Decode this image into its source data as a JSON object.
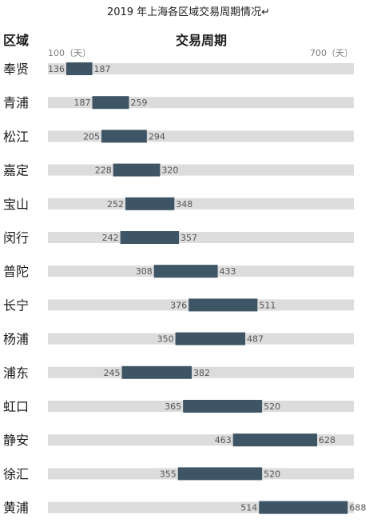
{
  "title": "2019 年上海各区域交易周期情况↵",
  "chart_data": {
    "type": "bar",
    "subtype": "range",
    "column_headers": {
      "category": "区域",
      "value": "交易周期"
    },
    "axis": {
      "min_label": "100（天）",
      "max_label": "700（天）",
      "range": [
        100,
        700
      ]
    },
    "categories": [
      "奉贤",
      "青浦",
      "松江",
      "嘉定",
      "宝山",
      "闵行",
      "普陀",
      "长宁",
      "杨浦",
      "浦东",
      "虹口",
      "静安",
      "徐汇",
      "黄浦"
    ],
    "ranges": [
      [
        136,
        187
      ],
      [
        187,
        259
      ],
      [
        205,
        294
      ],
      [
        228,
        320
      ],
      [
        252,
        348
      ],
      [
        242,
        357
      ],
      [
        308,
        433
      ],
      [
        376,
        511
      ],
      [
        350,
        487
      ],
      [
        245,
        382
      ],
      [
        365,
        520
      ],
      [
        463,
        628
      ],
      [
        355,
        520
      ],
      [
        514,
        688
      ]
    ],
    "colors": {
      "bar": "#3e5566",
      "track": "#dcdcdc"
    }
  }
}
